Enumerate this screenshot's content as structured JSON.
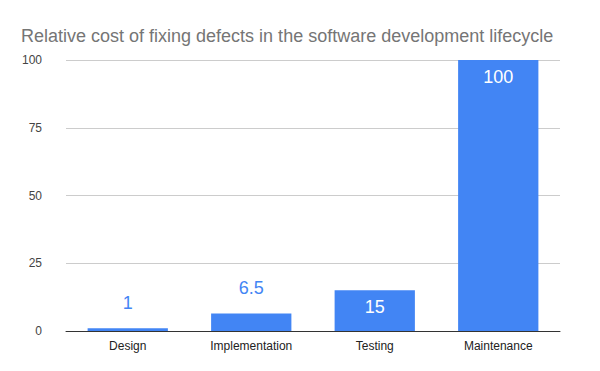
{
  "chart_data": {
    "type": "bar",
    "title": "Relative cost of fixing defects in the software development lifecycle",
    "categories": [
      "Design",
      "Implementation",
      "Testing",
      "Maintenance"
    ],
    "values": [
      1,
      6.5,
      15,
      100
    ],
    "color": "#4285f4",
    "ylim": [
      0,
      100
    ],
    "yticks": [
      0,
      25,
      50,
      75,
      100
    ],
    "grid": true,
    "data_labels": true
  }
}
